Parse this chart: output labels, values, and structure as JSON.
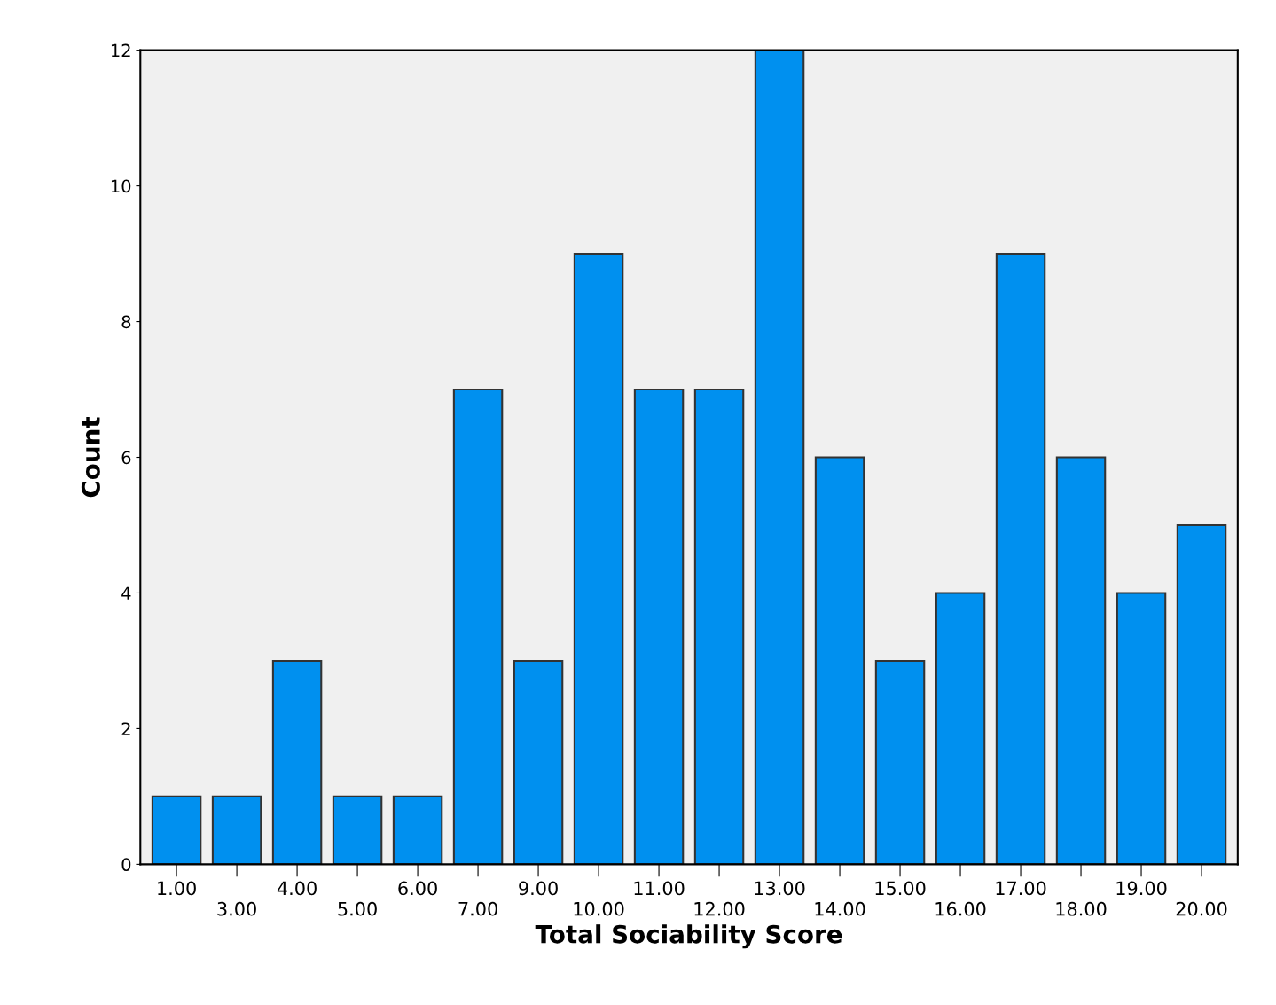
{
  "chart_data": {
    "type": "bar",
    "xlabel": "Total Sociability Score",
    "ylabel": "Count",
    "categories": [
      "1.00",
      "3.00",
      "4.00",
      "5.00",
      "6.00",
      "7.00",
      "9.00",
      "10.00",
      "11.00",
      "12.00",
      "13.00",
      "14.00",
      "15.00",
      "16.00",
      "17.00",
      "18.00",
      "19.00",
      "20.00"
    ],
    "values": [
      1,
      1,
      3,
      1,
      1,
      7,
      3,
      9,
      7,
      7,
      12,
      6,
      3,
      4,
      9,
      6,
      4,
      5
    ],
    "color": "#0090ef",
    "ylim": [
      0,
      12
    ],
    "yticks": [
      0,
      2,
      4,
      6,
      8,
      10,
      12
    ],
    "grid": false,
    "legend": false
  }
}
